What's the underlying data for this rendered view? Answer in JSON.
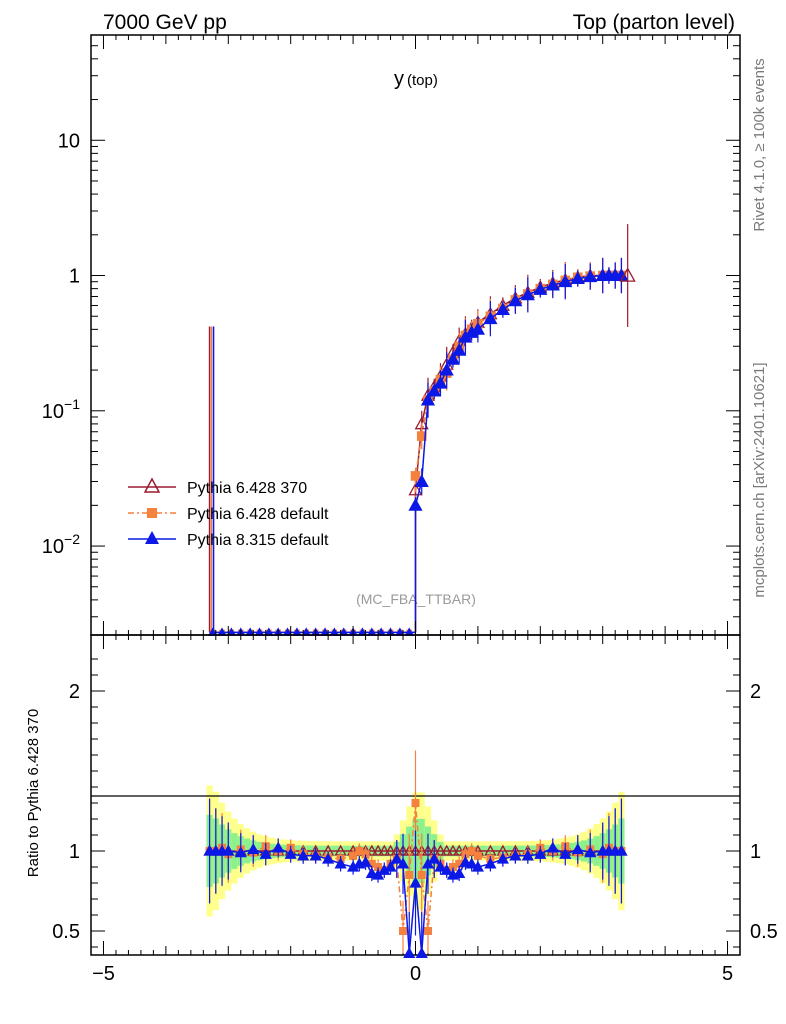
{
  "header": {
    "left": "7000 GeV pp",
    "right": "Top (parton level)"
  },
  "side_text": {
    "rivet": "Rivet 4.1.0, ≥ 100k events",
    "source": "mcplots.cern.ch [arXiv:2401.10621]"
  },
  "chart_data": {
    "type": "line",
    "title_main": "y",
    "title_sub": "(top)",
    "watermark": "(MC_FBA_TTBAR)",
    "xlabel": "",
    "ylabel_ratio": "Ratio to Pythia 6.428 370",
    "x_range": [
      -5.2,
      5.2
    ],
    "main_y_log_range": [
      0.0022,
      60
    ],
    "ratio_y_range": [
      0.35,
      2.35
    ],
    "x_ticks": [
      {
        "v": -5,
        "t": "−5"
      },
      {
        "v": 0,
        "t": "0"
      },
      {
        "v": 5,
        "t": "5"
      }
    ],
    "main_y_ticks": [
      {
        "v": 0.01,
        "b": "10",
        "e": "−2"
      },
      {
        "v": 0.1,
        "b": "10",
        "e": "−1"
      },
      {
        "v": 1,
        "b": "1",
        "e": ""
      },
      {
        "v": 10,
        "b": "10",
        "e": ""
      }
    ],
    "ratio_y_ticks": [
      {
        "v": 0.5,
        "t": "0.5"
      },
      {
        "v": 1,
        "t": "1"
      },
      {
        "v": 2,
        "t": "2"
      }
    ],
    "x": [
      0.0,
      0.1,
      0.2,
      0.3,
      0.4,
      0.5,
      0.6,
      0.7,
      0.8,
      0.9,
      1.0,
      1.2,
      1.4,
      1.6,
      1.8,
      2.0,
      2.2,
      2.4,
      2.6,
      2.8,
      3.0,
      3.1,
      3.2,
      3.3
    ],
    "series": [
      {
        "name": "Pythia 6.428 370",
        "color": "#9b1b30",
        "marker": "triangle-open",
        "values": [
          0.026,
          0.08,
          0.13,
          0.15,
          0.18,
          0.22,
          0.27,
          0.33,
          0.37,
          0.41,
          0.45,
          0.52,
          0.6,
          0.68,
          0.75,
          0.82,
          0.88,
          0.93,
          0.97,
          1.0,
          1.0,
          1.0,
          1.0,
          1.0
        ],
        "ratio": [
          1,
          1,
          1,
          1,
          1,
          1,
          1,
          1,
          1,
          1,
          1,
          1,
          1,
          1,
          1,
          1,
          1,
          1,
          1,
          1,
          1,
          1,
          1,
          1
        ]
      },
      {
        "name": "Pythia 6.428 default",
        "color": "#f5813f",
        "marker": "square",
        "values": [
          0.033,
          0.065,
          0.12,
          0.14,
          0.17,
          0.19,
          0.24,
          0.3,
          0.36,
          0.4,
          0.44,
          0.5,
          0.57,
          0.66,
          0.73,
          0.8,
          0.86,
          0.92,
          0.97,
          0.99,
          1.0,
          1.0,
          1.0,
          1.0
        ],
        "ratio": [
          1.3,
          0.85,
          0.5,
          0.95,
          0.92,
          0.88,
          0.9,
          0.92,
          0.98,
          1.0,
          0.97,
          0.95,
          0.96,
          0.97,
          0.98,
          1.02,
          1.0,
          1.03,
          0.99,
          1.01,
          0.98,
          1.02,
          1.0,
          1.0
        ]
      },
      {
        "name": "Pythia 8.315 default",
        "color": "#0b18e6",
        "marker": "triangle",
        "values": [
          0.02,
          0.03,
          0.12,
          0.14,
          0.16,
          0.2,
          0.24,
          0.28,
          0.35,
          0.38,
          0.4,
          0.48,
          0.56,
          0.65,
          0.72,
          0.79,
          0.85,
          0.9,
          0.95,
          0.98,
          1.0,
          1.0,
          1.0,
          1.0
        ],
        "ratio": [
          0.8,
          0.2,
          0.92,
          0.95,
          0.9,
          0.88,
          0.85,
          0.86,
          0.93,
          0.92,
          0.9,
          0.92,
          0.95,
          0.97,
          0.97,
          0.98,
          1.02,
          0.98,
          1.01,
          0.99,
          1.0,
          1.0,
          1.0,
          1.0
        ]
      }
    ],
    "left_spike": {
      "x": -3.3,
      "value": 0.42
    },
    "right_edge_point": {
      "x": 3.4,
      "value": 1.0
    },
    "legend_position": "middle-left"
  }
}
